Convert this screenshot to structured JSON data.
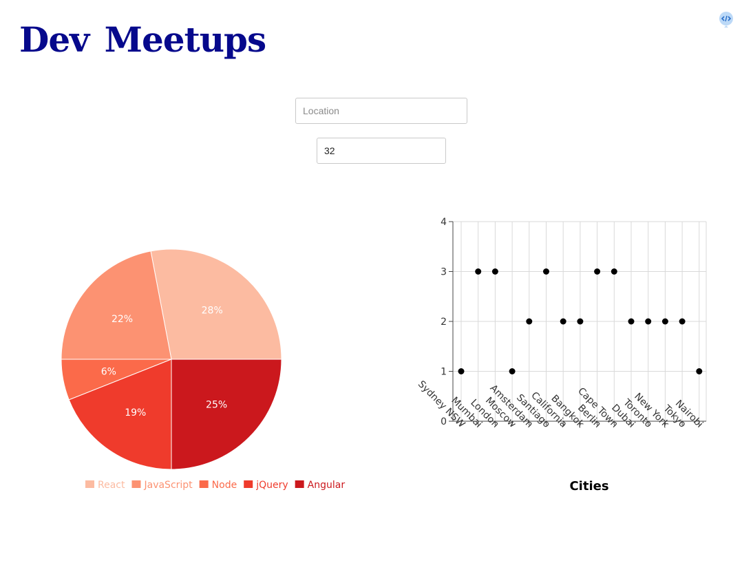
{
  "app": {
    "title": "Dev Meetups",
    "corner_icon": "code-brackets-icon"
  },
  "search": {
    "placeholder": "Location",
    "value": ""
  },
  "number_of_events": {
    "value": "32"
  },
  "colors": {
    "title": "#06098c"
  },
  "chart_data": [
    {
      "type": "pie",
      "title": "",
      "categories": [
        "React",
        "JavaScript",
        "Node",
        "jQuery",
        "Angular"
      ],
      "values": [
        28,
        22,
        6,
        19,
        25
      ],
      "labels": [
        "28%",
        "22%",
        "6%",
        "19%",
        "25%"
      ],
      "colors": [
        "#fcbba1",
        "#fc9272",
        "#fb6a4a",
        "#ef3b2c",
        "#cb181d"
      ],
      "legend": "bottom"
    },
    {
      "type": "scatter",
      "title": "",
      "xlabel": "Cities",
      "ylabel": "",
      "x": [
        "Sydney NSW",
        "Mumbai",
        "London",
        "Moscow",
        "Amsterdam",
        "Santiago",
        "California",
        "Bangkok",
        "Berlin",
        "Cape Town",
        "Dubai",
        "Toronto",
        "New York",
        "Tokyo",
        "Nairobi"
      ],
      "y": [
        1,
        3,
        3,
        1,
        2,
        3,
        2,
        2,
        3,
        3,
        2,
        2,
        2,
        2,
        1
      ],
      "ylim": [
        0,
        4
      ],
      "yticks": [
        0,
        1,
        2,
        3,
        4
      ],
      "grid": true,
      "point_color": "#000000"
    }
  ]
}
